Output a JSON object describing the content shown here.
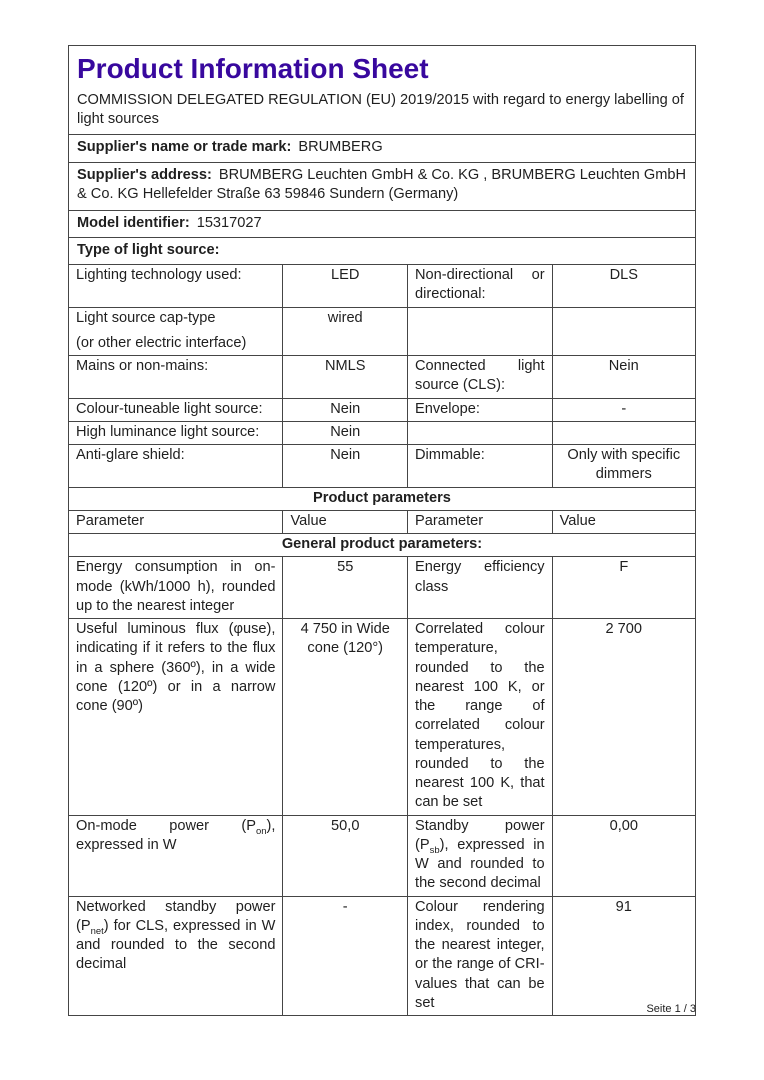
{
  "doc": {
    "title": "Product Information Sheet",
    "regulation": "COMMISSION DELEGATED REGULATION (EU) 2019/2015 with regard to energy labelling of light sources",
    "footer_page": "Seite 1 / 3"
  },
  "supplier": {
    "name_label": "Supplier's name or trade mark:",
    "name_value": "BRUMBERG",
    "address_label": "Supplier's address:",
    "address_value": "BRUMBERG Leuchten GmbH & Co. KG , BRUMBERG Leuchten GmbH & Co. KG Hellefelder Straße 63 59846 Sundern (Germany)",
    "model_label": "Model identifier:",
    "model_value": "15317027",
    "type_label": "Type of light source:"
  },
  "type_table": {
    "rows": [
      {
        "p1": "Lighting technology used:",
        "v1": "LED",
        "p2": "Non-directional or directional:",
        "v2": "DLS"
      },
      {
        "p1_line1": "Light source cap-type",
        "p1_line2": "(or other electric interface)",
        "v1": "wired",
        "p2": "",
        "v2": ""
      },
      {
        "p1": "Mains or non-mains:",
        "v1": "NMLS",
        "p2": "Connected light source (CLS):",
        "v2": "Nein"
      },
      {
        "p1": "Colour-tuneable light source:",
        "v1": "Nein",
        "p2": "Envelope:",
        "v2": "-"
      },
      {
        "p1": "High luminance light source:",
        "v1": "Nein",
        "p2": "",
        "v2": ""
      },
      {
        "p1": "Anti-glare shield:",
        "v1": "Nein",
        "p2": "Dimmable:",
        "v2": "Only with specific dimmers"
      }
    ]
  },
  "product_parameters": {
    "section_title": "Product parameters",
    "col_headers": [
      "Parameter",
      "Value",
      "Parameter",
      "Value"
    ],
    "subsection_title": "General product parameters:",
    "rows": [
      {
        "p1": "Energy consumption in on-mode (kWh/1000 h), rounded up to the nearest integer",
        "v1": "55",
        "p2": "Energy efficiency class",
        "v2": "F"
      },
      {
        "p1": "Useful luminous flux (φuse), indicating if it refers to the flux in a sphere (360º), in a wide cone (120º) or in a narrow cone (90º)",
        "v1": "4 750 in Wide cone (120°)",
        "p2": "Correlated colour temperature, rounded to the nearest 100 K, or the range of correlated colour temperatures, rounded to the nearest 100 K, that can be set",
        "v2": "2 700"
      },
      {
        "p1_runs": [
          {
            "t": "On-mode power (P"
          },
          {
            "t": "on",
            "sub": true
          },
          {
            "t": "), expressed in W"
          }
        ],
        "v1": "50,0",
        "p2_runs": [
          {
            "t": "Standby power (P"
          },
          {
            "t": "sb",
            "sub": true
          },
          {
            "t": "), expressed in W and rounded to the second decimal"
          }
        ],
        "v2": "0,00"
      },
      {
        "p1_runs": [
          {
            "t": "Networked standby power (P"
          },
          {
            "t": "net",
            "sub": true
          },
          {
            "t": ") for CLS, expressed in W and rounded to the second decimal"
          }
        ],
        "v1": "-",
        "p2": "Colour rendering index, rounded to the nearest integer, or the range of CRI-values that can be set",
        "v2": "91"
      }
    ]
  }
}
